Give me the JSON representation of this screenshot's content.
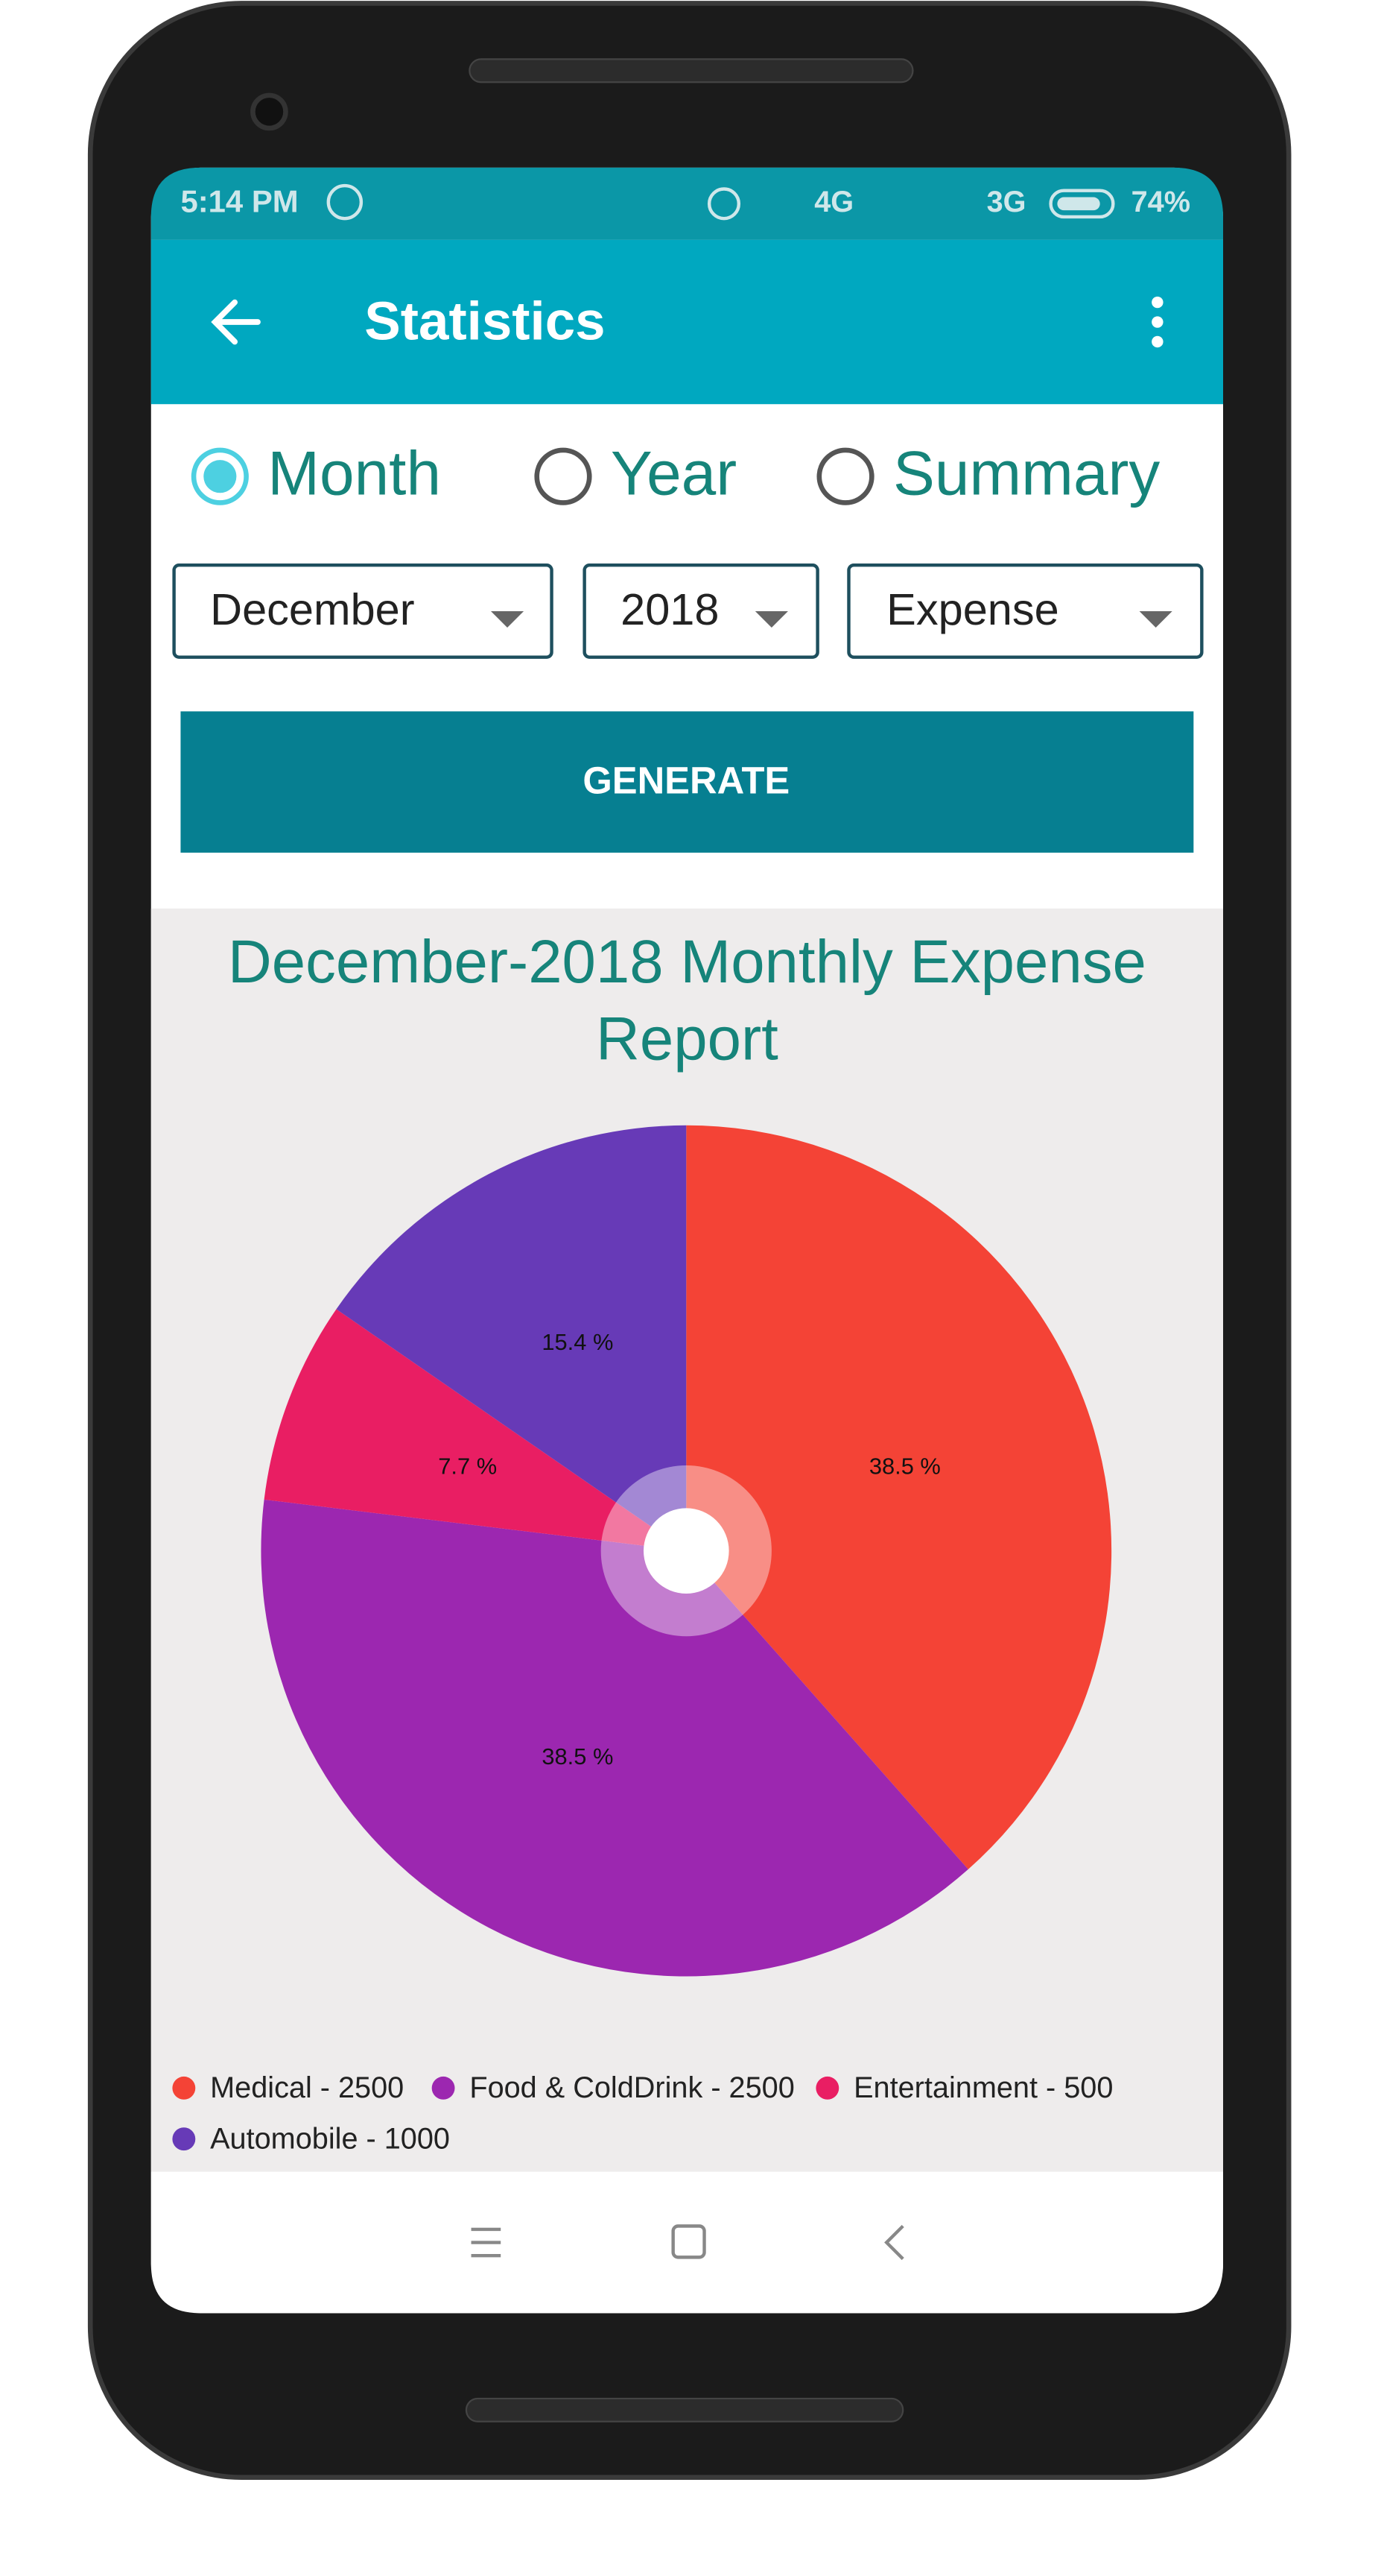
{
  "status_bar": {
    "time": "5:14 PM",
    "network_1": "4G",
    "network_2": "3G",
    "battery": "74%"
  },
  "app_bar": {
    "title": "Statistics"
  },
  "period_options": [
    {
      "label": "Month",
      "selected": true
    },
    {
      "label": "Year",
      "selected": false
    },
    {
      "label": "Summary",
      "selected": false
    }
  ],
  "filters": {
    "month": "December",
    "year": "2018",
    "kind": "Expense"
  },
  "generate_button": "GENERATE",
  "chart_data": {
    "type": "pie",
    "title": "December-2018 Monthly Expense Report",
    "categories": [
      "Medical - 2500",
      "Food & ColdDrink - 2500",
      "Entertainment - 500",
      "Automobile - 1000"
    ],
    "values": [
      38.5,
      38.5,
      7.7,
      15.4
    ],
    "value_labels": [
      "38.5 %",
      "38.5 %",
      "7.7 %",
      "15.4 %"
    ],
    "colors": [
      "#f44336",
      "#9c27b0",
      "#e91e63",
      "#673ab7"
    ]
  }
}
